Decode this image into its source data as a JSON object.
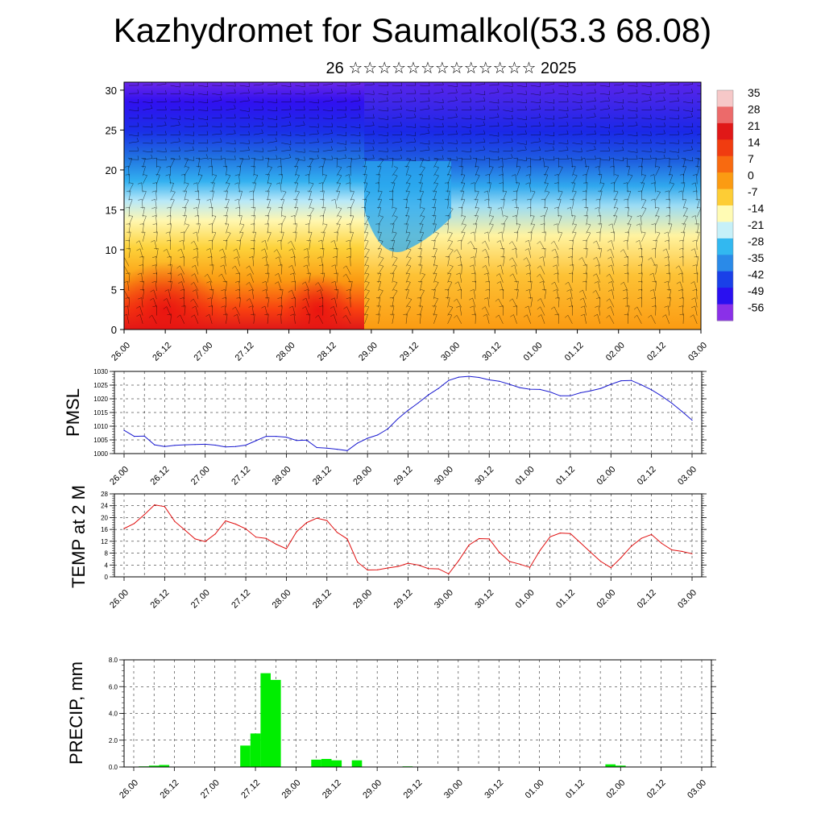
{
  "header": {
    "title": "Kazhydromet for Saumalkol(53.3 68.08)",
    "subtitle": "26 ☆☆☆☆☆☆☆☆☆☆☆☆☆ 2025"
  },
  "chart_data": [
    {
      "type": "heatmap",
      "description_none": "",
      "xlabel": "",
      "ylabel": "",
      "x_ticks": [
        "26.00",
        "26.12",
        "27.00",
        "27.12",
        "28.00",
        "28.12",
        "29.00",
        "29.12",
        "30.00",
        "30.12",
        "01.00",
        "01.12",
        "02.00",
        "02.12",
        "03.00"
      ],
      "y_ticks": [
        0,
        5,
        10,
        15,
        20,
        25,
        30
      ],
      "ylim": [
        0,
        31
      ],
      "colorbar_labels": [
        "35",
        "28",
        "21",
        "14",
        "7",
        "0",
        "-7",
        "-14",
        "-21",
        "-28",
        "-35",
        "-42",
        "-49",
        "-56"
      ],
      "colorbar_colors": [
        "#f6c8c8",
        "#ec6a6a",
        "#e01818",
        "#f03c10",
        "#f86a10",
        "#fb9b12",
        "#fdcd35",
        "#fffbb4",
        "#c6f0f8",
        "#32b8f0",
        "#2a8ae8",
        "#1a40e8",
        "#2a10f0",
        "#8a30e8"
      ],
      "vectors": "wind barbs overlay"
    },
    {
      "type": "line",
      "ylabel": "PMSL",
      "ylim": [
        1000,
        1030
      ],
      "y_ticks": [
        "1000",
        "1005",
        "1010",
        "1015",
        "1020",
        "1025",
        "1030"
      ],
      "x_ticks": [
        "26.00",
        "26.12",
        "27.00",
        "27.12",
        "28.00",
        "28.12",
        "29.00",
        "29.12",
        "30.00",
        "30.12",
        "01.00",
        "01.12",
        "02.00",
        "02.12",
        "03.00"
      ],
      "color": "#1a1ad0",
      "x": [
        0,
        1,
        2,
        3,
        4,
        5,
        6,
        7,
        8,
        9,
        10,
        11,
        12,
        13,
        14,
        15,
        16,
        17,
        18,
        19,
        20,
        21,
        22,
        23,
        24,
        25,
        26,
        27,
        28,
        29,
        30,
        31,
        32,
        33,
        34,
        35,
        36,
        37,
        38,
        39,
        40,
        41,
        42,
        43,
        44,
        45,
        46,
        47,
        48,
        49,
        50,
        51,
        52,
        53,
        54,
        55,
        56
      ],
      "values": [
        1008.5,
        1006.3,
        1006.4,
        1003.2,
        1002.6,
        1003,
        1003.2,
        1003.3,
        1003.4,
        1003.1,
        1002.4,
        1002.6,
        1003.1,
        1004.7,
        1006.3,
        1006.3,
        1006,
        1004.8,
        1004.9,
        1002.2,
        1002,
        1001.6,
        1001.1,
        1003.8,
        1005.6,
        1006.8,
        1009,
        1012.7,
        1015.8,
        1018.5,
        1021.4,
        1023.8,
        1026.7,
        1027.9,
        1028.2,
        1027.8,
        1026.9,
        1026.4,
        1025.3,
        1024.1,
        1023.5,
        1023.4,
        1022.5,
        1021.1,
        1021.1,
        1022.2,
        1022.9,
        1023.8,
        1025.3,
        1026.6,
        1026.7,
        1025.1,
        1023.3,
        1021,
        1018.4,
        1015.4,
        1012.2
      ]
    },
    {
      "type": "line",
      "ylabel": "TEMP at 2 M",
      "ylim": [
        0,
        28
      ],
      "y_ticks": [
        "0",
        "4",
        "8",
        "12",
        "16",
        "20",
        "24",
        "28"
      ],
      "x_ticks": [
        "26.00",
        "26.12",
        "27.00",
        "27.12",
        "28.00",
        "28.12",
        "29.00",
        "29.12",
        "30.00",
        "30.12",
        "01.00",
        "01.12",
        "02.00",
        "02.12",
        "03.00"
      ],
      "color": "#e01010",
      "x": [
        0,
        1,
        2,
        3,
        4,
        5,
        6,
        7,
        8,
        9,
        10,
        11,
        12,
        13,
        14,
        15,
        16,
        17,
        18,
        19,
        20,
        21,
        22,
        23,
        24,
        25,
        26,
        27,
        28,
        29,
        30,
        31,
        32,
        33,
        34,
        35,
        36,
        37,
        38,
        39,
        40,
        41,
        42,
        43,
        44,
        45,
        46,
        47,
        48,
        49,
        50,
        51,
        52,
        53,
        54,
        55,
        56
      ],
      "values": [
        16.3,
        18,
        21,
        24.3,
        23.7,
        18.7,
        15.8,
        12.8,
        11.9,
        14.5,
        18.9,
        17.8,
        16.2,
        13.4,
        13,
        11,
        9.5,
        15.2,
        18.3,
        19.8,
        19,
        15,
        12.8,
        5,
        2.3,
        2.4,
        3,
        3.5,
        4.6,
        4,
        2.8,
        2.7,
        1,
        5.5,
        10.7,
        12.9,
        12.8,
        8.3,
        5.2,
        4.3,
        3.2,
        8.9,
        13.5,
        14.8,
        14.6,
        11.5,
        8.3,
        5.2,
        3.1,
        6.5,
        10.3,
        13,
        14.3,
        11.3,
        9.1,
        8.6,
        7.8
      ]
    },
    {
      "type": "bar",
      "ylabel": "PRECIP, mm",
      "ylim": [
        0,
        8
      ],
      "y_ticks": [
        "0.0",
        "2.0",
        "4.0",
        "6.0",
        "8.0"
      ],
      "x_ticks": [
        "26.00",
        "26.12",
        "27.00",
        "27.12",
        "28.00",
        "28.12",
        "29.00",
        "29.12",
        "30.00",
        "30.12",
        "01.00",
        "01.12",
        "02.00",
        "02.12",
        "03.00"
      ],
      "color": "#00ee00",
      "x": [
        0,
        1,
        2,
        3,
        4,
        5,
        6,
        7,
        8,
        9,
        10,
        11,
        12,
        13,
        14,
        15,
        16,
        17,
        18,
        19,
        20,
        21,
        22,
        23,
        24,
        25,
        26,
        27,
        28,
        29,
        30,
        31,
        32,
        33,
        34,
        35,
        36,
        37,
        38,
        39,
        40,
        41,
        42,
        43,
        44,
        45,
        46,
        47,
        48,
        49,
        50,
        51,
        52,
        53,
        54,
        55,
        56
      ],
      "values": [
        0,
        0.05,
        0.1,
        0.15,
        0,
        0,
        0,
        0,
        0,
        0,
        0,
        1.6,
        2.5,
        7,
        6.5,
        0,
        0,
        0,
        0.55,
        0.6,
        0.5,
        0,
        0.5,
        0,
        0,
        0,
        0,
        0.05,
        0,
        0,
        0,
        0,
        0,
        0,
        0,
        0,
        0,
        0,
        0,
        0,
        0,
        0,
        0,
        0,
        0,
        0,
        0,
        0.2,
        0.1,
        0,
        0,
        0,
        0,
        0,
        0,
        0,
        0
      ]
    }
  ]
}
